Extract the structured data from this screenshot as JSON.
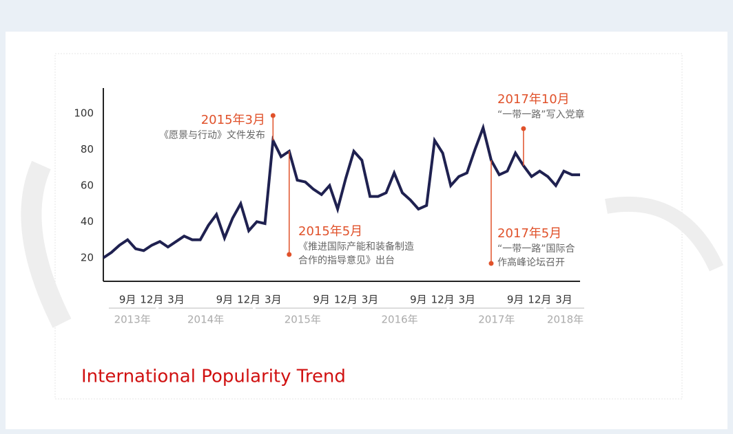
{
  "chart_data": {
    "type": "line",
    "title": "International Popularity Trend",
    "categories": [
      null,
      null,
      null,
      "9月",
      null,
      null,
      "12月",
      null,
      null,
      "3月",
      null,
      null,
      null,
      null,
      null,
      "9月",
      null,
      null,
      "12月",
      null,
      null,
      "3月",
      null,
      null,
      null,
      null,
      null,
      "9月",
      null,
      null,
      "12月",
      null,
      null,
      "3月",
      null,
      null,
      null,
      null,
      null,
      "9月",
      null,
      null,
      "12月",
      null,
      null,
      "3月",
      null,
      null,
      null,
      null,
      null,
      "9月",
      null,
      null,
      "12月",
      null,
      null,
      "3月",
      null,
      null
    ],
    "year_groups": [
      "2013年",
      "2014年",
      "2015年",
      "2016年",
      "2017年",
      "2018年"
    ],
    "series": [
      {
        "color": "#1f2150",
        "values": [
          20,
          23,
          27,
          30,
          25,
          24,
          27,
          29,
          26,
          29,
          32,
          30,
          30,
          38,
          44,
          31,
          42,
          50,
          35,
          40,
          39,
          85,
          76,
          79,
          63,
          62,
          58,
          55,
          60,
          47,
          64,
          79,
          74,
          54,
          54,
          56,
          67,
          56,
          52,
          47,
          49,
          85,
          78,
          60,
          65,
          67,
          80,
          92,
          74,
          66,
          68,
          78,
          71,
          65,
          68,
          65,
          60,
          68,
          66,
          66
        ]
      }
    ],
    "ylim": [
      7,
      114
    ],
    "yticks": [
      20,
      40,
      60,
      80,
      100
    ],
    "annotation_color": "#e0512a",
    "annotations": [
      {
        "label": "2015年3月",
        "text": [
          "《愿景与行动》文件发布"
        ]
      },
      {
        "label": "2015年5月",
        "text": [
          "《推进国际产能和装备制造",
          "合作的指导意见》出台"
        ]
      },
      {
        "label": "2017年10月",
        "text": [
          "“一带一路”写入党章"
        ]
      },
      {
        "label": "2017年5月",
        "text": [
          "“一带一路”国际合",
          "作高峰论坛召开"
        ]
      }
    ]
  }
}
